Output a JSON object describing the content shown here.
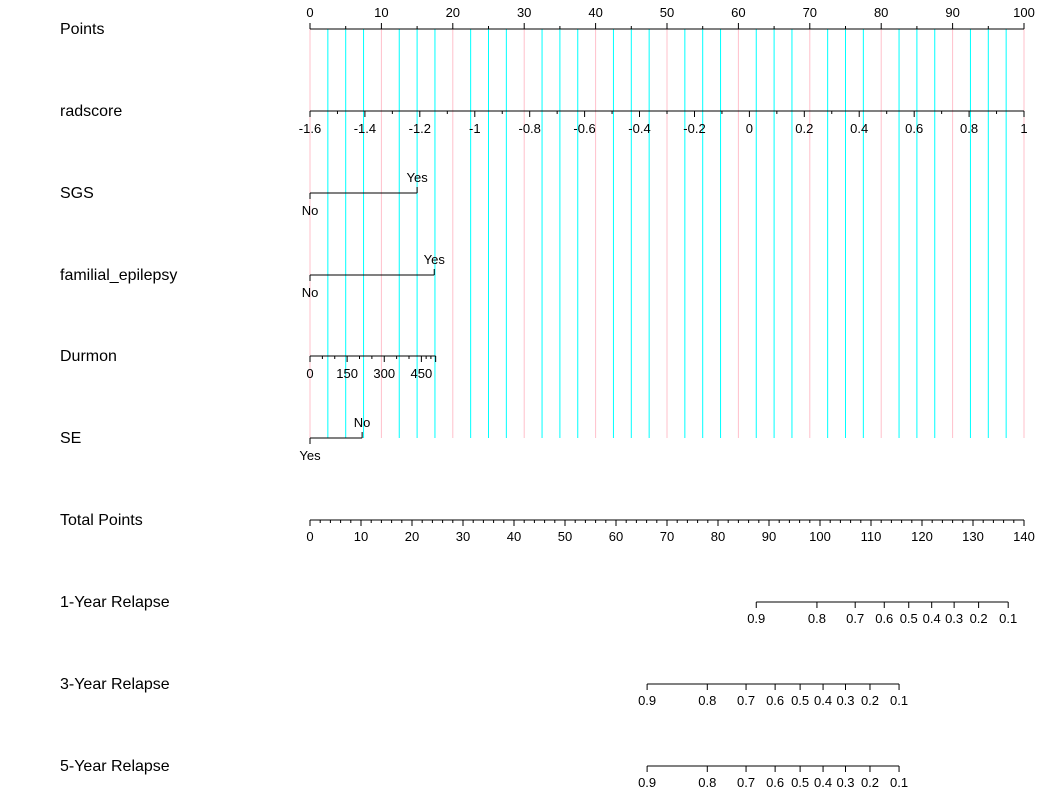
{
  "chart_data": {
    "type": "nomogram",
    "title": "",
    "scales": [
      {
        "name": "Points",
        "kind": "points",
        "range": [
          0,
          100
        ],
        "ticks": [
          0,
          10,
          20,
          30,
          40,
          50,
          60,
          70,
          80,
          90,
          100
        ],
        "tick_labels": [
          "0",
          "10",
          "20",
          "30",
          "40",
          "50",
          "60",
          "70",
          "80",
          "90",
          "100"
        ],
        "labels_above": true
      },
      {
        "name": "radscore",
        "kind": "continuous",
        "values": [
          -1.6,
          -1.4,
          -1.2,
          -1,
          -0.8,
          -0.6,
          -0.4,
          -0.2,
          0,
          0.2,
          0.4,
          0.6,
          0.8,
          1
        ],
        "tick_labels": [
          "-1.6",
          "-1.4",
          "-1.2",
          "-1",
          "-0.8",
          "-0.6",
          "-0.4",
          "-0.2",
          "0",
          "0.2",
          "0.4",
          "0.6",
          "0.8",
          "1"
        ],
        "points": [
          0,
          7.69,
          15.38,
          23.08,
          30.77,
          38.46,
          46.15,
          53.85,
          61.54,
          69.23,
          76.92,
          84.62,
          92.31,
          100
        ],
        "minor_ticks_between": 1,
        "labels_above": false
      },
      {
        "name": "SGS",
        "kind": "categorical",
        "levels": [
          {
            "label": "No",
            "points": 0,
            "position": "below"
          },
          {
            "label": "Yes",
            "points": 15,
            "position": "above"
          }
        ]
      },
      {
        "name": "familial_epilepsy",
        "kind": "categorical",
        "levels": [
          {
            "label": "No",
            "points": 0,
            "position": "below"
          },
          {
            "label": "Yes",
            "points": 17.4,
            "position": "above"
          }
        ]
      },
      {
        "name": "Durmon",
        "kind": "continuous",
        "values": [
          0,
          150,
          300,
          450
        ],
        "tick_labels": [
          "0",
          "150",
          "300",
          "450"
        ],
        "points": [
          0,
          5.2,
          10.4,
          15.6
        ],
        "minor_ticks_between": 2,
        "end_points": 17.6,
        "labels_above": false
      },
      {
        "name": "SE",
        "kind": "categorical",
        "levels": [
          {
            "label": "Yes",
            "points": 0,
            "position": "below"
          },
          {
            "label": "No",
            "points": 7.3,
            "position": "above"
          }
        ]
      },
      {
        "name": "Total Points",
        "kind": "total",
        "range": [
          0,
          140
        ],
        "ticks": [
          0,
          10,
          20,
          30,
          40,
          50,
          60,
          70,
          80,
          90,
          100,
          110,
          120,
          130,
          140
        ],
        "tick_labels": [
          "0",
          "10",
          "20",
          "30",
          "40",
          "50",
          "60",
          "70",
          "80",
          "90",
          "100",
          "110",
          "120",
          "130",
          "140"
        ],
        "minor_ticks_between": 4,
        "labels_above": false
      },
      {
        "name": "1-Year Relapse",
        "kind": "probability",
        "values": [
          0.9,
          0.8,
          0.7,
          0.6,
          0.5,
          0.4,
          0.3,
          0.2,
          0.1
        ],
        "tick_labels": [
          "0.9",
          "0.8",
          "0.7",
          "0.6",
          "0.5",
          "0.4",
          "0.3",
          "0.2",
          "0.1"
        ],
        "total_points": [
          87.5,
          99.4,
          106.9,
          112.6,
          117.4,
          121.9,
          126.3,
          131.1,
          136.9
        ],
        "labels_above": false
      },
      {
        "name": "3-Year Relapse",
        "kind": "probability",
        "values": [
          0.9,
          0.8,
          0.7,
          0.6,
          0.5,
          0.4,
          0.3,
          0.2,
          0.1
        ],
        "tick_labels": [
          "0.9",
          "0.8",
          "0.7",
          "0.6",
          "0.5",
          "0.4",
          "0.3",
          "0.2",
          "0.1"
        ],
        "total_points": [
          66.1,
          77.9,
          85.5,
          91.2,
          96.1,
          100.6,
          105,
          109.8,
          115.5
        ],
        "labels_above": false
      },
      {
        "name": "5-Year Relapse",
        "kind": "probability",
        "values": [
          0.9,
          0.8,
          0.7,
          0.6,
          0.5,
          0.4,
          0.3,
          0.2,
          0.1
        ],
        "tick_labels": [
          "0.9",
          "0.8",
          "0.7",
          "0.6",
          "0.5",
          "0.4",
          "0.3",
          "0.2",
          "0.1"
        ],
        "total_points": [
          66.1,
          77.9,
          85.5,
          91.2,
          96.1,
          100.6,
          105,
          109.8,
          115.5
        ],
        "labels_above": false
      }
    ],
    "grid": true,
    "grid_major_step": 10,
    "grid_minor_step": 2.5,
    "colors": {
      "axis": "#000000",
      "grid_major": "#ffc0cb",
      "grid_minor": "#00ffff"
    }
  }
}
